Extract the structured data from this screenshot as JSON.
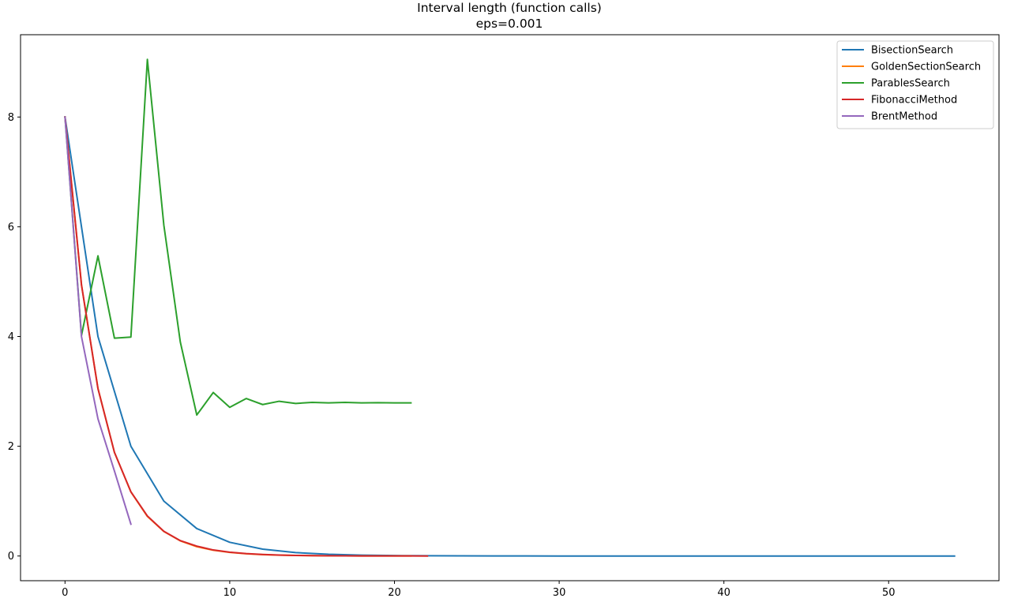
{
  "chart_data": {
    "type": "line",
    "title": "Interval length (function calls)",
    "subtitle": "eps=0.001",
    "xlabel": "",
    "ylabel": "",
    "xlim": [
      -2.7,
      56.7
    ],
    "ylim": [
      -0.45,
      9.5
    ],
    "xticks": [
      0,
      10,
      20,
      30,
      40,
      50
    ],
    "yticks": [
      0,
      2,
      4,
      6,
      8
    ],
    "grid": false,
    "legend_position": "top-right",
    "series": [
      {
        "name": "BisectionSearch",
        "color": "#1f77b4",
        "x": [
          0,
          2,
          4,
          6,
          8,
          10,
          12,
          14,
          16,
          18,
          20,
          22,
          24,
          26,
          28,
          30,
          32,
          34,
          36,
          38,
          40,
          42,
          44,
          46,
          48,
          50,
          52,
          54
        ],
        "y": [
          8,
          4,
          2,
          1,
          0.5,
          0.25,
          0.125,
          0.0625,
          0.03125,
          0.0156,
          0.0078,
          0.0039,
          0.002,
          0.001,
          0.0005,
          0.0002,
          0.0001,
          0.0001,
          0,
          0,
          0,
          0,
          0,
          0,
          0,
          0,
          0,
          0
        ]
      },
      {
        "name": "GoldenSectionSearch",
        "color": "#ff7f0e",
        "x": [
          0,
          1,
          2,
          3,
          4,
          5,
          6,
          7,
          8,
          9,
          10,
          11,
          12,
          13,
          14,
          15,
          16,
          17,
          18,
          19,
          20,
          21
        ],
        "y": [
          8,
          4.944,
          3.056,
          1.889,
          1.167,
          0.721,
          0.446,
          0.276,
          0.17,
          0.105,
          0.065,
          0.04,
          0.025,
          0.015,
          0.0095,
          0.0059,
          0.0036,
          0.0022,
          0.0014,
          0.0009,
          0.0005,
          0.0003
        ]
      },
      {
        "name": "ParablesSearch",
        "color": "#2ca02c",
        "x": [
          0,
          1,
          2,
          3,
          4,
          5,
          6,
          7,
          8,
          9,
          10,
          11,
          12,
          13,
          14,
          15,
          16,
          17,
          18,
          19,
          20,
          21
        ],
        "y": [
          8,
          4.02,
          5.47,
          3.97,
          3.99,
          9.05,
          6.03,
          3.9,
          2.57,
          2.98,
          2.71,
          2.87,
          2.76,
          2.82,
          2.78,
          2.8,
          2.79,
          2.8,
          2.79,
          2.795,
          2.79,
          2.79
        ]
      },
      {
        "name": "FibonacciMethod",
        "color": "#d62728",
        "x": [
          0,
          1,
          2,
          3,
          4,
          5,
          6,
          7,
          8,
          9,
          10,
          11,
          12,
          13,
          14,
          15,
          16,
          17,
          18,
          19,
          20,
          21,
          22
        ],
        "y": [
          8,
          4.94,
          3.05,
          1.89,
          1.17,
          0.73,
          0.45,
          0.28,
          0.18,
          0.11,
          0.07,
          0.045,
          0.028,
          0.017,
          0.011,
          0.0065,
          0.004,
          0.0025,
          0.0015,
          0.001,
          0.0006,
          0.0004,
          0.0002
        ]
      },
      {
        "name": "BrentMethod",
        "color": "#9467bd",
        "x": [
          0,
          1,
          2,
          3,
          4
        ],
        "y": [
          8,
          4.0,
          2.5,
          1.55,
          0.58
        ]
      }
    ]
  }
}
